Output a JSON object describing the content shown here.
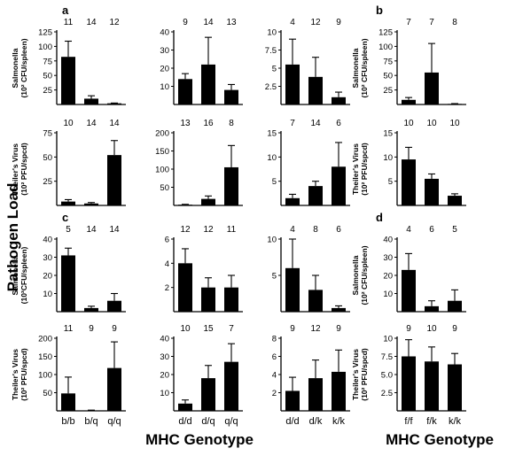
{
  "figure": {
    "side_label": "Pathogen Load",
    "xlabel_left": "MHC Genotype",
    "xlabel_right": "MHC Genotype",
    "ylabels": {
      "salmonella_2": [
        "Salmonella",
        "(10² CFU/spleen)"
      ],
      "salmonella_3": [
        "Salmonella",
        "(10³CFU/spleen)"
      ],
      "theiler": [
        "Theiler's Virus",
        "(10² PFU/spcd)"
      ]
    },
    "panel_letters": {
      "a": "a",
      "b": "b",
      "c": "c",
      "d": "d"
    },
    "bar_color": "#000000"
  },
  "chart_data": [
    {
      "id": "a1",
      "type": "bar",
      "panel": "a",
      "ylabel": "salmonella_2",
      "categories": [
        "b/b",
        "b/q",
        "q/q"
      ],
      "values": [
        82,
        10,
        2
      ],
      "errors": [
        27,
        5,
        0.5
      ],
      "n": [
        "11",
        "14",
        "12"
      ],
      "ylim": [
        0,
        125
      ],
      "yticks": [
        "25",
        "50",
        "75",
        "100",
        "125"
      ]
    },
    {
      "id": "a2",
      "type": "bar",
      "panel": "a",
      "categories": [
        "d/d",
        "d/q",
        "q/q"
      ],
      "values": [
        14,
        22,
        8
      ],
      "errors": [
        3,
        15,
        3
      ],
      "n": [
        "9",
        "14",
        "13"
      ],
      "ylim": [
        0,
        40
      ],
      "yticks": [
        "10",
        "20",
        "30",
        "40"
      ]
    },
    {
      "id": "a3",
      "type": "bar",
      "panel": "a",
      "categories": [
        "d/d",
        "d/k",
        "k/k"
      ],
      "values": [
        5.5,
        3.8,
        1.0
      ],
      "errors": [
        3.5,
        2.7,
        0.7
      ],
      "n": [
        "4",
        "12",
        "9"
      ],
      "ylim": [
        0,
        10
      ],
      "yticks": [
        "2.5",
        "5",
        "7.5",
        "10"
      ]
    },
    {
      "id": "b1",
      "type": "bar",
      "panel": "b",
      "ylabel": "salmonella_2",
      "categories": [
        "f/f",
        "f/k",
        "k/k"
      ],
      "values": [
        8,
        55,
        1
      ],
      "errors": [
        4,
        50,
        0.5
      ],
      "n": [
        "7",
        "7",
        "8"
      ],
      "ylim": [
        0,
        125
      ],
      "yticks": [
        "25",
        "50",
        "75",
        "100",
        "125"
      ]
    },
    {
      "id": "a4",
      "type": "bar",
      "panel": "a",
      "ylabel": "theiler",
      "categories": [
        "b/b",
        "b/q",
        "q/q"
      ],
      "values": [
        4,
        2,
        52
      ],
      "errors": [
        2,
        1,
        15
      ],
      "n": [
        "10",
        "14",
        "14"
      ],
      "ylim": [
        0,
        75
      ],
      "yticks": [
        "25",
        "50",
        "75"
      ]
    },
    {
      "id": "a5",
      "type": "bar",
      "panel": "a",
      "categories": [
        "d/d",
        "d/q",
        "q/q"
      ],
      "values": [
        2,
        18,
        105
      ],
      "errors": [
        1,
        8,
        60
      ],
      "n": [
        "13",
        "16",
        "8"
      ],
      "ylim": [
        0,
        200
      ],
      "yticks": [
        "50",
        "100",
        "150",
        "200"
      ]
    },
    {
      "id": "a6",
      "type": "bar",
      "panel": "a",
      "categories": [
        "d/d",
        "d/k",
        "k/k"
      ],
      "values": [
        1.5,
        4.0,
        8.0
      ],
      "errors": [
        0.8,
        1.0,
        5.0
      ],
      "n": [
        "7",
        "14",
        "6"
      ],
      "ylim": [
        0,
        15
      ],
      "yticks": [
        "5",
        "10",
        "15"
      ]
    },
    {
      "id": "b2",
      "type": "bar",
      "panel": "b",
      "ylabel": "theiler",
      "categories": [
        "f/f",
        "f/k",
        "k/k"
      ],
      "values": [
        9.5,
        5.5,
        2.0
      ],
      "errors": [
        2.5,
        1.0,
        0.4
      ],
      "n": [
        "10",
        "10",
        "10"
      ],
      "ylim": [
        0,
        15
      ],
      "yticks": [
        "5",
        "10",
        "15"
      ]
    },
    {
      "id": "c1",
      "type": "bar",
      "panel": "c",
      "ylabel": "salmonella_3",
      "categories": [
        "b/b",
        "b/q",
        "q/q"
      ],
      "values": [
        31,
        2,
        6
      ],
      "errors": [
        4,
        1,
        4
      ],
      "n": [
        "5",
        "14",
        "14"
      ],
      "ylim": [
        0,
        40
      ],
      "yticks": [
        "10",
        "20",
        "30",
        "40"
      ]
    },
    {
      "id": "c2",
      "type": "bar",
      "panel": "c",
      "categories": [
        "d/d",
        "d/q",
        "q/q"
      ],
      "values": [
        4.0,
        2.0,
        2.0
      ],
      "errors": [
        1.2,
        0.8,
        1.0
      ],
      "n": [
        "12",
        "12",
        "11"
      ],
      "ylim": [
        0,
        6
      ],
      "yticks": [
        "2",
        "4",
        "6"
      ]
    },
    {
      "id": "c3",
      "type": "bar",
      "panel": "c",
      "categories": [
        "d/d",
        "d/k",
        "k/k"
      ],
      "values": [
        6.0,
        3.0,
        0.5
      ],
      "errors": [
        4.0,
        2.0,
        0.3
      ],
      "n": [
        "4",
        "8",
        "6"
      ],
      "ylim": [
        0,
        10
      ],
      "yticks": [
        "5",
        "10"
      ]
    },
    {
      "id": "d1",
      "type": "bar",
      "panel": "d",
      "ylabel": "salmonella_2",
      "categories": [
        "f/f",
        "f/k",
        "k/k"
      ],
      "values": [
        23,
        3,
        6
      ],
      "errors": [
        9,
        3,
        6
      ],
      "n": [
        "4",
        "6",
        "5"
      ],
      "ylim": [
        0,
        40
      ],
      "yticks": [
        "10",
        "20",
        "30",
        "40"
      ]
    },
    {
      "id": "c4",
      "type": "bar",
      "panel": "c",
      "ylabel": "theiler",
      "categories": [
        "b/b",
        "b/q",
        "q/q"
      ],
      "values": [
        48,
        1,
        118
      ],
      "errors": [
        45,
        1,
        72
      ],
      "n": [
        "11",
        "9",
        "9"
      ],
      "ylim": [
        0,
        200
      ],
      "yticks": [
        "50",
        "100",
        "150",
        "200"
      ],
      "show_cats": true
    },
    {
      "id": "c5",
      "type": "bar",
      "panel": "c",
      "categories": [
        "d/d",
        "d/q",
        "q/q"
      ],
      "values": [
        4,
        18,
        27
      ],
      "errors": [
        2,
        7,
        10
      ],
      "n": [
        "10",
        "15",
        "7"
      ],
      "ylim": [
        0,
        40
      ],
      "yticks": [
        "10",
        "20",
        "30",
        "40"
      ],
      "show_cats": true
    },
    {
      "id": "c6",
      "type": "bar",
      "panel": "c",
      "categories": [
        "d/d",
        "d/k",
        "k/k"
      ],
      "values": [
        2.2,
        3.6,
        4.3
      ],
      "errors": [
        1.5,
        2.0,
        2.4
      ],
      "n": [
        "9",
        "12",
        "9"
      ],
      "ylim": [
        0,
        8
      ],
      "yticks": [
        "2",
        "4",
        "6",
        "8"
      ],
      "show_cats": true
    },
    {
      "id": "d2",
      "type": "bar",
      "panel": "d",
      "ylabel": "theiler",
      "categories": [
        "f/f",
        "f/k",
        "k/k"
      ],
      "values": [
        7.5,
        6.8,
        6.4
      ],
      "errors": [
        2.3,
        2.0,
        1.5
      ],
      "n": [
        "9",
        "10",
        "9"
      ],
      "ylim": [
        0,
        10
      ],
      "yticks": [
        "2.5",
        "5.0",
        "7.5",
        "10"
      ],
      "show_cats": true
    }
  ]
}
